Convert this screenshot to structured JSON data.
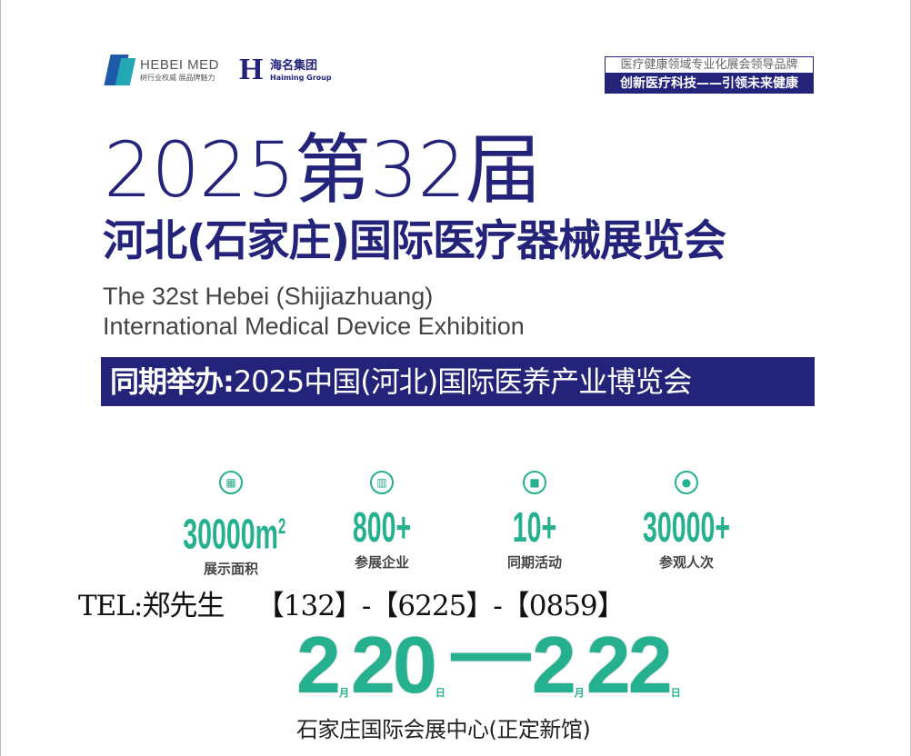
{
  "logos": {
    "hebei_med": {
      "name": "HEBEI MED",
      "slogan": "树行业权威 展品牌魅力"
    },
    "haiming": {
      "name": "海名集团",
      "english": "Haiming Group"
    }
  },
  "tagline": {
    "line1": "医疗健康领域专业化展会领导品牌",
    "line2": "创新医疗科技——引领未来健康"
  },
  "title": {
    "year_edition": "2025第32届",
    "chinese": "河北(石家庄)国际医疗器械展览会",
    "english_line1": "The 32st Hebei (Shijiazhuang)",
    "english_line2": "International Medical Device Exhibition"
  },
  "concurrent": {
    "prefix": "同期举办:",
    "name": "2025中国(河北)国际医养产业博览会"
  },
  "stats": [
    {
      "icon": "area-icon",
      "value": "30000m",
      "sup": "2",
      "label": "展示面积"
    },
    {
      "icon": "building-icon",
      "value": "800+",
      "sup": "",
      "label": "参展企业"
    },
    {
      "icon": "gift-icon",
      "value": "10+",
      "sup": "",
      "label": "同期活动"
    },
    {
      "icon": "person-icon",
      "value": "30000+",
      "sup": "",
      "label": "参观人次"
    }
  ],
  "contact": {
    "text": "TEL:郑先生    【132】-【6225】-【0859】"
  },
  "dates": {
    "start_month": "2",
    "month_unit": "月",
    "start_day": "20",
    "day_unit": "日",
    "dash": "—",
    "end_month": "2",
    "end_day": "22"
  },
  "venue": "石家庄国际会展中心(正定新馆)",
  "colors": {
    "navy": "#23237a",
    "green": "#25b08f"
  }
}
